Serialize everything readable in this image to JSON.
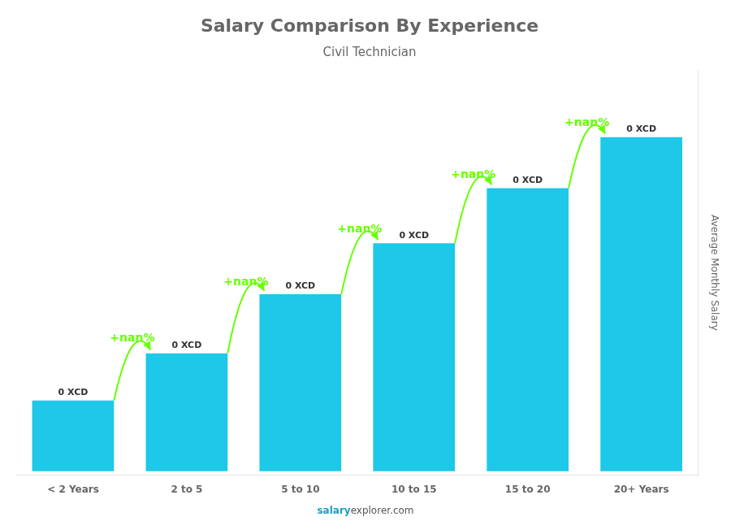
{
  "chart_data": {
    "type": "bar",
    "title": "Salary Comparison By Experience",
    "subtitle": "Civil Technician",
    "categories": [
      "< 2 Years",
      "2 to 5",
      "5 to 10",
      "10 to 15",
      "15 to 20",
      "20+ Years"
    ],
    "values": [
      0.18,
      0.3,
      0.45,
      0.58,
      0.72,
      0.85
    ],
    "value_labels": [
      "0 XCD",
      "0 XCD",
      "0 XCD",
      "0 XCD",
      "0 XCD",
      "0 XCD"
    ],
    "data_labels": true,
    "color": "#1ec8e8",
    "ylabel": "Average Monthly Salary",
    "ylim": [
      -0.01,
      1.02
    ],
    "tick_labels": "x",
    "grid": false,
    "annotations": [
      {
        "text": "+nan%",
        "from": "< 2 Years",
        "to": "2 to 5",
        "color": "#66ff00"
      },
      {
        "text": "+nan%",
        "from": "2 to 5",
        "to": "5 to 10",
        "color": "#66ff00"
      },
      {
        "text": "+nan%",
        "from": "5 to 10",
        "to": "10 to 15",
        "color": "#66ff00"
      },
      {
        "text": "+nan%",
        "from": "10 to 15",
        "to": "15 to 20",
        "color": "#66ff00"
      },
      {
        "text": "+nan%",
        "from": "15 to 20",
        "to": "20+ Years",
        "color": "#66ff00"
      }
    ],
    "footer": [
      "salary",
      "explorer.com"
    ]
  }
}
